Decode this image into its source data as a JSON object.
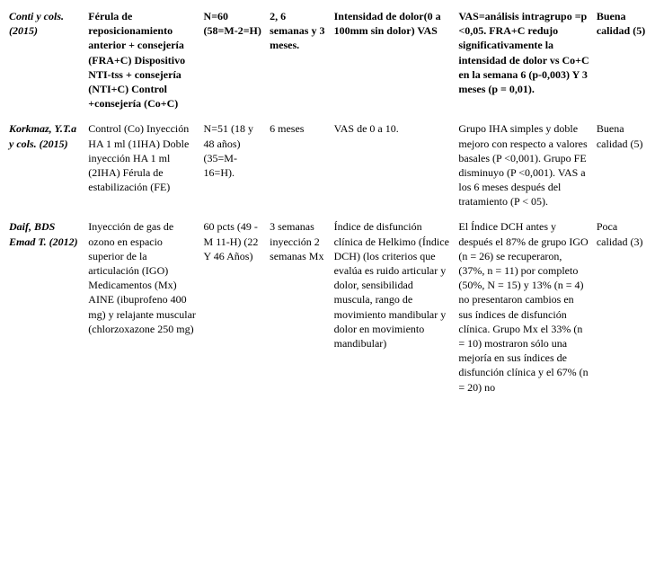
{
  "table": {
    "rows": [
      {
        "header": true,
        "author": " Conti y cols. (2015)",
        "intervention": "Férula de reposicionamiento anterior + consejería (FRA+C) Dispositivo NTI-tss + consejería (NTI+C) Control +consejería (Co+C)",
        "sample": "N=60 (58=M-2=H)",
        "timepoints": "2, 6 semanas y 3 meses.",
        "outcome": "Intensidad de dolor(0 a 100mm sin dolor) VAS",
        "results": "VAS=análisis intragrupo =p <0,05. FRA+C redujo significativamente la intensidad de dolor vs Co+C en la semana 6 (p-0,003) Y 3 meses (p = 0,01).",
        "quality": "Buena calidad (5)"
      },
      {
        "header": false,
        "author": "Korkmaz, Y.T.a y cols. (2015)",
        "intervention": "Control (Co) Inyección HA 1 ml (1IHA)\nDoble inyección HA 1 ml (2IHA) Férula de estabilización (FE)",
        "sample": "N=51 (18 y 48 años) (35=M-16=H).",
        "timepoints": "6 meses",
        "outcome": "VAS de 0 a 10.",
        "results": " Grupo IHA simples y doble mejoro con respecto a valores basales (P <0,001). Grupo FE disminuyo (P <0,001). VAS a los 6 meses después del tratamiento (P < 05).",
        "quality": "Buena calidad (5)"
      },
      {
        "header": false,
        "author": "Daif, BDS Emad T. (2012)",
        "intervention": "Inyección de gas de ozono en espacio superior de la articulación (IGO) Medicamentos (Mx) AINE (ibuprofeno 400 mg) y relajante muscular (chlorzoxazone 250 mg)",
        "sample": "60 pcts (49 -M 11-H) (22 Y 46 Años)",
        "timepoints": "3 semanas inyección 2 semanas Mx",
        "outcome": "Índice de disfunción clínica de Helkimo (Índice DCH) (los criterios que evalúa es ruido articular y dolor, sensibilidad muscula, rango de movimiento mandibular y dolor en movimiento mandibular)",
        "results": "El Índice DCH antes y después el 87% de grupo IGO (n = 26) se recuperaron, (37%, n = 11) por completo (50%, N = 15) y 13% (n = 4) no presentaron cambios en sus índices de disfunción clínica. Grupo Mx el 33% (n = 10) mostraron sólo una mejoría en sus índices de disfunción clínica y el 67% (n = 20) no",
        "quality": "Poca calidad (3)"
      }
    ]
  }
}
